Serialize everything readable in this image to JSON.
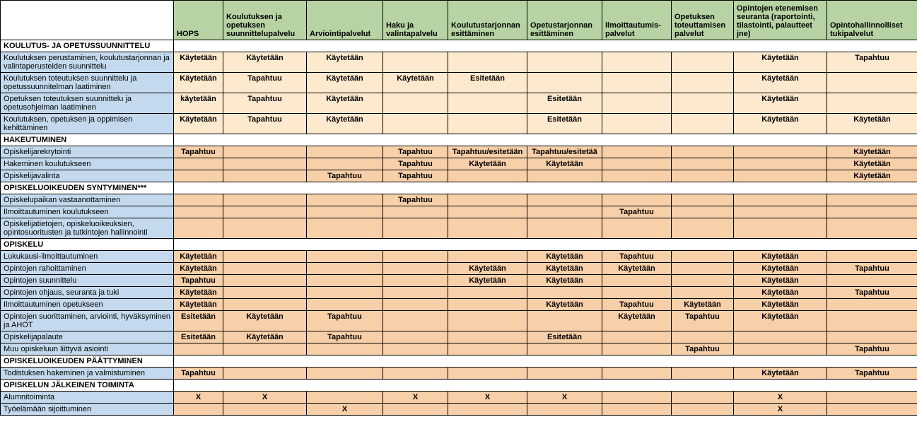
{
  "colors": {
    "header_bg": "#b7d3a3",
    "rowlabel_bg": "#c4d9ed",
    "cell_yellow": "#fde9ce",
    "cell_orange": "#f7cfa8",
    "border": "#000000"
  },
  "columns": [
    "HOPS",
    "Koulutuksen ja opetuksen suunnittelupalvelu",
    "Arviointipalvelut",
    "Haku ja valintapalvelu",
    "Koulutustarjonnan esittäminen",
    "Opetustarjonnan esittäminen",
    "Ilmoittautumis-palvelut",
    "Opetuksen toteuttamisen palvelut",
    "Opintojen etenemisen seuranta (raportointi, tilastointi, palautteet jne)",
    "Opintohallinnolliset tukipalvelut"
  ],
  "sections": [
    {
      "title": "KOULUTUS- JA OPETUSSUUNNITTELU",
      "rows": [
        {
          "label": "Koulutuksen perustaminen, koulutustarjonnan ja valintaperusteiden suunnittelu",
          "cells": [
            {
              "t": "Käytetään",
              "c": "y"
            },
            {
              "t": "Käytetään",
              "c": "y"
            },
            {
              "t": "Käytetään",
              "c": "y"
            },
            {
              "t": "",
              "c": "y"
            },
            {
              "t": "",
              "c": "y"
            },
            {
              "t": "",
              "c": "y"
            },
            {
              "t": "",
              "c": "y"
            },
            {
              "t": "",
              "c": "y"
            },
            {
              "t": "Käytetään",
              "c": "y"
            },
            {
              "t": "Tapahtuu",
              "c": "y"
            }
          ]
        },
        {
          "label": "Koulutuksen toteutuksen suunnittelu ja opetussuunnitelman laatiminen",
          "cells": [
            {
              "t": "Käytetään",
              "c": "y"
            },
            {
              "t": "Tapahtuu",
              "c": "y"
            },
            {
              "t": "Käytetään",
              "c": "y"
            },
            {
              "t": "Käytetään",
              "c": "y"
            },
            {
              "t": "Esitetään",
              "c": "y"
            },
            {
              "t": "",
              "c": "y"
            },
            {
              "t": "",
              "c": "y"
            },
            {
              "t": "",
              "c": "y"
            },
            {
              "t": "Käytetään",
              "c": "y"
            },
            {
              "t": "",
              "c": "y"
            }
          ]
        },
        {
          "label": "Opetuksen toteutuksen suunnittelu ja opetusohjelman laatiminen",
          "cells": [
            {
              "t": "käytetään",
              "c": "y"
            },
            {
              "t": "Tapahtuu",
              "c": "y"
            },
            {
              "t": "Käytetään",
              "c": "y"
            },
            {
              "t": "",
              "c": "y"
            },
            {
              "t": "",
              "c": "y"
            },
            {
              "t": "Esitetään",
              "c": "y"
            },
            {
              "t": "",
              "c": "y"
            },
            {
              "t": "",
              "c": "y"
            },
            {
              "t": "Käytetään",
              "c": "y"
            },
            {
              "t": "",
              "c": "y"
            }
          ]
        },
        {
          "label": "Koulutuksen, opetuksen ja oppimisen kehittäminen",
          "cells": [
            {
              "t": "Käytetään",
              "c": "y"
            },
            {
              "t": "Tapahtuu",
              "c": "y"
            },
            {
              "t": "Käytetään",
              "c": "y"
            },
            {
              "t": "",
              "c": "y"
            },
            {
              "t": "",
              "c": "y"
            },
            {
              "t": "Esitetään",
              "c": "y"
            },
            {
              "t": "",
              "c": "y"
            },
            {
              "t": "",
              "c": "y"
            },
            {
              "t": "Käytetään",
              "c": "y"
            },
            {
              "t": "Käytetään",
              "c": "y"
            }
          ]
        }
      ]
    },
    {
      "title": "HAKEUTUMINEN",
      "rows": [
        {
          "label": "Opiskelijarekrytointi",
          "cells": [
            {
              "t": "Tapahtuu",
              "c": "o"
            },
            {
              "t": "",
              "c": "o"
            },
            {
              "t": "",
              "c": "o"
            },
            {
              "t": "Tapahtuu",
              "c": "o"
            },
            {
              "t": "Tapahtuu/esitetään",
              "c": "o"
            },
            {
              "t": "Tapahtuu/esitetää",
              "c": "o"
            },
            {
              "t": "",
              "c": "o"
            },
            {
              "t": "",
              "c": "o"
            },
            {
              "t": "",
              "c": "o"
            },
            {
              "t": "Käytetään",
              "c": "o"
            }
          ]
        },
        {
          "label": "Hakeminen koulutukseen",
          "cells": [
            {
              "t": "",
              "c": "o"
            },
            {
              "t": "",
              "c": "o"
            },
            {
              "t": "",
              "c": "o"
            },
            {
              "t": "Tapahtuu",
              "c": "o"
            },
            {
              "t": "Käytetään",
              "c": "o"
            },
            {
              "t": "Käytetään",
              "c": "o"
            },
            {
              "t": "",
              "c": "o"
            },
            {
              "t": "",
              "c": "o"
            },
            {
              "t": "",
              "c": "o"
            },
            {
              "t": "Käytetään",
              "c": "o"
            }
          ]
        },
        {
          "label": "Opiskelijavalinta",
          "cells": [
            {
              "t": "",
              "c": "o"
            },
            {
              "t": "",
              "c": "o"
            },
            {
              "t": "Tapahtuu",
              "c": "o"
            },
            {
              "t": "Tapahtuu",
              "c": "o"
            },
            {
              "t": "",
              "c": "o"
            },
            {
              "t": "",
              "c": "o"
            },
            {
              "t": "",
              "c": "o"
            },
            {
              "t": "",
              "c": "o"
            },
            {
              "t": "",
              "c": "o"
            },
            {
              "t": "Käytetään",
              "c": "o"
            }
          ]
        }
      ]
    },
    {
      "title": "OPISKELUOIKEUDEN SYNTYMINEN***",
      "rows": [
        {
          "label": "Opiskelupaikan vastaanottaminen",
          "cells": [
            {
              "t": "",
              "c": "o"
            },
            {
              "t": "",
              "c": "o"
            },
            {
              "t": "",
              "c": "o"
            },
            {
              "t": "Tapahtuu",
              "c": "o"
            },
            {
              "t": "",
              "c": "o"
            },
            {
              "t": "",
              "c": "o"
            },
            {
              "t": "",
              "c": "o"
            },
            {
              "t": "",
              "c": "o"
            },
            {
              "t": "",
              "c": "o"
            },
            {
              "t": "",
              "c": "o"
            }
          ]
        },
        {
          "label": "Ilmoittautuminen koulutukseen",
          "cells": [
            {
              "t": "",
              "c": "o"
            },
            {
              "t": "",
              "c": "o"
            },
            {
              "t": "",
              "c": "o"
            },
            {
              "t": "",
              "c": "o"
            },
            {
              "t": "",
              "c": "o"
            },
            {
              "t": "",
              "c": "o"
            },
            {
              "t": "Tapahtuu",
              "c": "o"
            },
            {
              "t": "",
              "c": "o"
            },
            {
              "t": "",
              "c": "o"
            },
            {
              "t": "",
              "c": "o"
            }
          ]
        },
        {
          "label": "Opiskelijatietojen, opiskeluoikeuksien, opintosuoritusten ja tutkintojen hallinnointi",
          "cells": [
            {
              "t": "",
              "c": "o"
            },
            {
              "t": "",
              "c": "o"
            },
            {
              "t": "",
              "c": "o"
            },
            {
              "t": "",
              "c": "o"
            },
            {
              "t": "",
              "c": "o"
            },
            {
              "t": "",
              "c": "o"
            },
            {
              "t": "",
              "c": "o"
            },
            {
              "t": "",
              "c": "o"
            },
            {
              "t": "",
              "c": "o"
            },
            {
              "t": "",
              "c": "o"
            }
          ]
        }
      ]
    },
    {
      "title": "OPISKELU",
      "rows": [
        {
          "label": "Lukukausi-ilmoittautuminen",
          "cells": [
            {
              "t": "Käytetään",
              "c": "o"
            },
            {
              "t": "",
              "c": "o"
            },
            {
              "t": "",
              "c": "o"
            },
            {
              "t": "",
              "c": "o"
            },
            {
              "t": "",
              "c": "o"
            },
            {
              "t": "Käytetään",
              "c": "o"
            },
            {
              "t": "Tapahtuu",
              "c": "o"
            },
            {
              "t": "",
              "c": "o"
            },
            {
              "t": "Käytetään",
              "c": "o"
            },
            {
              "t": "",
              "c": "o"
            }
          ]
        },
        {
          "label": "Opintojen rahoittaminen",
          "cells": [
            {
              "t": "Käytetään",
              "c": "o"
            },
            {
              "t": "",
              "c": "o"
            },
            {
              "t": "",
              "c": "o"
            },
            {
              "t": "",
              "c": "o"
            },
            {
              "t": "Käytetään",
              "c": "o"
            },
            {
              "t": "Käytetään",
              "c": "o"
            },
            {
              "t": "Käytetään",
              "c": "o"
            },
            {
              "t": "",
              "c": "o"
            },
            {
              "t": "Käytetään",
              "c": "o"
            },
            {
              "t": "Tapahtuu",
              "c": "o"
            }
          ]
        },
        {
          "label": "Opintojen suunnittelu",
          "cells": [
            {
              "t": "Tapahtuu",
              "c": "o"
            },
            {
              "t": "",
              "c": "o"
            },
            {
              "t": "",
              "c": "o"
            },
            {
              "t": "",
              "c": "o"
            },
            {
              "t": "Käytetään",
              "c": "o"
            },
            {
              "t": "Käytetään",
              "c": "o"
            },
            {
              "t": "",
              "c": "o"
            },
            {
              "t": "",
              "c": "o"
            },
            {
              "t": "Käytetään",
              "c": "o"
            },
            {
              "t": "",
              "c": "o"
            }
          ]
        },
        {
          "label": "Opintojen ohjaus, seuranta ja tuki",
          "cells": [
            {
              "t": "Käytetään",
              "c": "o"
            },
            {
              "t": "",
              "c": "o"
            },
            {
              "t": "",
              "c": "o"
            },
            {
              "t": "",
              "c": "o"
            },
            {
              "t": "",
              "c": "o"
            },
            {
              "t": "",
              "c": "o"
            },
            {
              "t": "",
              "c": "o"
            },
            {
              "t": "",
              "c": "o"
            },
            {
              "t": "Käytetään",
              "c": "o"
            },
            {
              "t": "Tapahtuu",
              "c": "o"
            }
          ]
        },
        {
          "label": "Ilmoittautuminen opetukseen",
          "cells": [
            {
              "t": "Käytetään",
              "c": "o"
            },
            {
              "t": "",
              "c": "o"
            },
            {
              "t": "",
              "c": "o"
            },
            {
              "t": "",
              "c": "o"
            },
            {
              "t": "",
              "c": "o"
            },
            {
              "t": "Käytetään",
              "c": "o"
            },
            {
              "t": "Tapahtuu",
              "c": "o"
            },
            {
              "t": "Käytetään",
              "c": "o"
            },
            {
              "t": "Käytetään",
              "c": "o"
            },
            {
              "t": "",
              "c": "o"
            }
          ]
        },
        {
          "label": "Opintojen suorittaminen, arviointi, hyväksyminen ja AHOT",
          "cells": [
            {
              "t": "Esitetään",
              "c": "o"
            },
            {
              "t": "Käytetään",
              "c": "o"
            },
            {
              "t": "Tapahtuu",
              "c": "o"
            },
            {
              "t": "",
              "c": "o"
            },
            {
              "t": "",
              "c": "o"
            },
            {
              "t": "",
              "c": "o"
            },
            {
              "t": "Käytetään",
              "c": "o"
            },
            {
              "t": "Tapahtuu",
              "c": "o"
            },
            {
              "t": "Käytetään",
              "c": "o"
            },
            {
              "t": "",
              "c": "o"
            }
          ]
        },
        {
          "label": "Opiskelijapalaute",
          "cells": [
            {
              "t": "Esitetään",
              "c": "o"
            },
            {
              "t": "Käytetään",
              "c": "o"
            },
            {
              "t": "Tapahtuu",
              "c": "o"
            },
            {
              "t": "",
              "c": "o"
            },
            {
              "t": "",
              "c": "o"
            },
            {
              "t": "Esitetään",
              "c": "o"
            },
            {
              "t": "",
              "c": "o"
            },
            {
              "t": "",
              "c": "o"
            },
            {
              "t": "",
              "c": "o"
            },
            {
              "t": "",
              "c": "o"
            }
          ]
        },
        {
          "label": "Muu opiskeluun liittyvä asiointi",
          "cells": [
            {
              "t": "",
              "c": "o"
            },
            {
              "t": "",
              "c": "o"
            },
            {
              "t": "",
              "c": "o"
            },
            {
              "t": "",
              "c": "o"
            },
            {
              "t": "",
              "c": "o"
            },
            {
              "t": "",
              "c": "o"
            },
            {
              "t": "",
              "c": "o"
            },
            {
              "t": "Tapahtuu",
              "c": "o"
            },
            {
              "t": "",
              "c": "o"
            },
            {
              "t": "Tapahtuu",
              "c": "o"
            }
          ]
        }
      ]
    },
    {
      "title": "OPISKELUOIKEUDEN PÄÄTTYMINEN",
      "rows": [
        {
          "label": "Todistuksen hakeminen ja valmistuminen",
          "cells": [
            {
              "t": "Tapahtuu",
              "c": "o"
            },
            {
              "t": "",
              "c": "o"
            },
            {
              "t": "",
              "c": "o"
            },
            {
              "t": "",
              "c": "o"
            },
            {
              "t": "",
              "c": "o"
            },
            {
              "t": "",
              "c": "o"
            },
            {
              "t": "",
              "c": "o"
            },
            {
              "t": "",
              "c": "o"
            },
            {
              "t": "Käytetään",
              "c": "o"
            },
            {
              "t": "Tapahtuu",
              "c": "o"
            }
          ]
        }
      ]
    },
    {
      "title": "OPISKELUN JÄLKEINEN TOIMINTA",
      "rows": [
        {
          "label": "Alumnitoiminta",
          "cells": [
            {
              "t": "X",
              "c": "o"
            },
            {
              "t": "X",
              "c": "o"
            },
            {
              "t": "",
              "c": "o"
            },
            {
              "t": "X",
              "c": "o"
            },
            {
              "t": "X",
              "c": "o"
            },
            {
              "t": "X",
              "c": "o"
            },
            {
              "t": "",
              "c": "o"
            },
            {
              "t": "",
              "c": "o"
            },
            {
              "t": "X",
              "c": "o"
            },
            {
              "t": "",
              "c": "o"
            }
          ]
        },
        {
          "label": "Työelämään sijoittuminen",
          "cells": [
            {
              "t": "",
              "c": "o"
            },
            {
              "t": "",
              "c": "o"
            },
            {
              "t": "X",
              "c": "o"
            },
            {
              "t": "",
              "c": "o"
            },
            {
              "t": "",
              "c": "o"
            },
            {
              "t": "",
              "c": "o"
            },
            {
              "t": "",
              "c": "o"
            },
            {
              "t": "",
              "c": "o"
            },
            {
              "t": "X",
              "c": "o"
            },
            {
              "t": "",
              "c": "o"
            }
          ]
        }
      ]
    }
  ]
}
